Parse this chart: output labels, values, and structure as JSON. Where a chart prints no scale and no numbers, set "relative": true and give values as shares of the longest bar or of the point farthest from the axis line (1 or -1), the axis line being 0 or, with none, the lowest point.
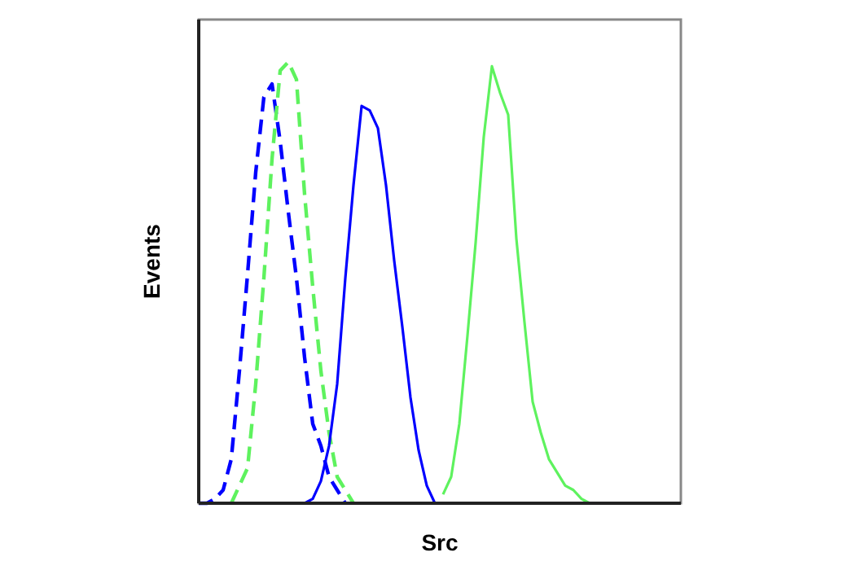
{
  "chart_data": {
    "type": "line",
    "relative": true,
    "xlabel": "Src",
    "ylabel": "Events",
    "categories": [
      null,
      null,
      null,
      null,
      null,
      null,
      null,
      null,
      null,
      null,
      null,
      null,
      null,
      null,
      null,
      null,
      null,
      null,
      null,
      null,
      null,
      null,
      null,
      null,
      null,
      null,
      null,
      null,
      null,
      null,
      null,
      null,
      null,
      null,
      null,
      null,
      null,
      null,
      null,
      null,
      null,
      null,
      null,
      null,
      null,
      null,
      null,
      null,
      null,
      null,
      null,
      null,
      null,
      null,
      null,
      null,
      null,
      null,
      null,
      null
    ],
    "series": [
      {
        "color": "#0000ff",
        "line_style": "dashed",
        "values": [
          0,
          0,
          0.01,
          0.03,
          0.1,
          0.3,
          0.52,
          0.75,
          0.92,
          0.95,
          0.82,
          0.66,
          0.51,
          0.33,
          0.18,
          0.13,
          0.06,
          0.03,
          0,
          null,
          null,
          null,
          null,
          null,
          null,
          null,
          null,
          null,
          null,
          null,
          null,
          null,
          null,
          null,
          null,
          null,
          null,
          null,
          null,
          null,
          null,
          null,
          null,
          null,
          null,
          null,
          null,
          null,
          null,
          null,
          null,
          null,
          null,
          null,
          null,
          null,
          null,
          null,
          null,
          null
        ]
      },
      {
        "color": "#5ef25e",
        "line_style": "dashed",
        "values": [
          null,
          null,
          null,
          null,
          0,
          0.04,
          0.08,
          0.27,
          0.51,
          0.78,
          0.98,
          1,
          0.96,
          0.7,
          0.49,
          0.3,
          0.16,
          0.06,
          0.03,
          0,
          null,
          null,
          null,
          null,
          null,
          null,
          null,
          null,
          null,
          null,
          null,
          null,
          null,
          null,
          null,
          null,
          null,
          null,
          null,
          null,
          null,
          null,
          null,
          null,
          null,
          null,
          null,
          null,
          null,
          null,
          null,
          null,
          null,
          null,
          null,
          null,
          null,
          null,
          null,
          null
        ]
      },
      {
        "color": "#0000ff",
        "line_style": "solid",
        "values": [
          null,
          null,
          null,
          null,
          null,
          null,
          null,
          null,
          null,
          null,
          null,
          null,
          null,
          0,
          0.01,
          0.05,
          0.13,
          0.27,
          0.51,
          0.72,
          0.9,
          0.89,
          0.85,
          0.72,
          0.55,
          0.4,
          0.24,
          0.12,
          0.04,
          0,
          null,
          null,
          null,
          null,
          null,
          null,
          null,
          null,
          null,
          null,
          null,
          null,
          null,
          null,
          null,
          null,
          null,
          null,
          null,
          null,
          null,
          null,
          null,
          null,
          null,
          null,
          null,
          null,
          null,
          null
        ]
      },
      {
        "color": "#5ef25e",
        "line_style": "solid",
        "values": [
          null,
          null,
          null,
          null,
          null,
          null,
          null,
          null,
          null,
          null,
          null,
          null,
          null,
          null,
          null,
          null,
          null,
          null,
          null,
          null,
          null,
          null,
          null,
          null,
          null,
          null,
          null,
          null,
          null,
          null,
          0.02,
          0.06,
          0.18,
          0.38,
          0.59,
          0.83,
          0.99,
          0.93,
          0.88,
          0.6,
          0.41,
          0.23,
          0.16,
          0.1,
          0.07,
          0.04,
          0.03,
          0.01,
          0,
          null,
          null,
          null,
          null,
          null,
          null,
          null,
          null,
          null,
          null,
          null
        ]
      }
    ]
  }
}
